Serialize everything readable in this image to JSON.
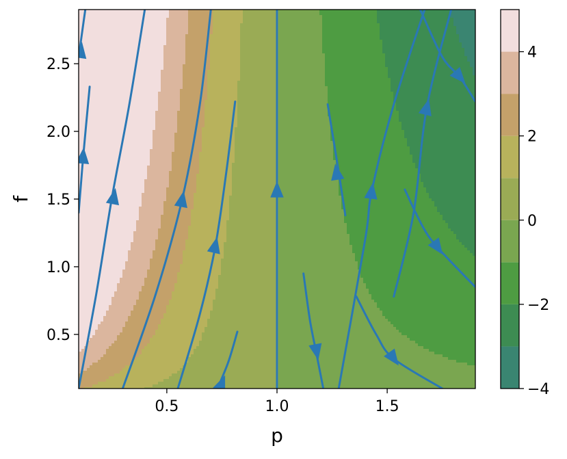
{
  "chart_data": {
    "type": "contour+streamplot",
    "xlabel": "p",
    "ylabel": "f",
    "xlim": [
      0.1,
      1.9
    ],
    "ylim": [
      0.1,
      2.9
    ],
    "xticks": [
      0.5,
      1.0,
      1.5
    ],
    "yticks": [
      0.5,
      1.0,
      1.5,
      2.0,
      2.5
    ],
    "colorbar": {
      "levels": [
        -4,
        -3,
        -2,
        -1,
        0,
        1,
        2,
        3,
        4,
        5
      ],
      "ticks": [
        -4,
        -2,
        0,
        2,
        4
      ],
      "colors": [
        "#3a8571",
        "#3d8c52",
        "#4e9c42",
        "#7aa650",
        "#9aab55",
        "#b8b25c",
        "#c4a16a",
        "#dbb69e",
        "#f2dede"
      ]
    },
    "streamline_color": "#2a78b5",
    "streamlines": [
      {
        "pts": [
          [
            0.1,
            2.55
          ],
          [
            0.13,
            2.9
          ]
        ],
        "arrow": [
          0.11,
          2.6
        ]
      },
      {
        "pts": [
          [
            0.1,
            1.4
          ],
          [
            0.12,
            1.8
          ],
          [
            0.15,
            2.33
          ]
        ],
        "arrow": [
          0.12,
          1.82
        ]
      },
      {
        "pts": [
          [
            0.1,
            0.1
          ],
          [
            0.18,
            0.8
          ],
          [
            0.25,
            1.5
          ],
          [
            0.33,
            2.2
          ],
          [
            0.4,
            2.9
          ]
        ],
        "arrow": [
          0.26,
          1.52
        ]
      },
      {
        "pts": [
          [
            0.3,
            0.1
          ],
          [
            0.45,
            0.8
          ],
          [
            0.57,
            1.5
          ],
          [
            0.65,
            2.2
          ],
          [
            0.7,
            2.9
          ]
        ],
        "arrow": [
          0.57,
          1.5
        ]
      },
      {
        "pts": [
          [
            0.55,
            0.1
          ],
          [
            0.65,
            0.65
          ],
          [
            0.72,
            1.15
          ],
          [
            0.77,
            1.7
          ],
          [
            0.81,
            2.22
          ]
        ],
        "arrow": [
          0.72,
          1.16
        ]
      },
      {
        "pts": [
          [
            0.73,
            0.1
          ],
          [
            0.78,
            0.3
          ],
          [
            0.82,
            0.52
          ]
        ],
        "arrow": [
          0.75,
          0.14
        ]
      },
      {
        "pts": [
          [
            1.0,
            0.1
          ],
          [
            1.0,
            2.9
          ]
        ],
        "arrow": [
          1.0,
          1.57
        ]
      },
      {
        "pts": [
          [
            1.12,
            0.95
          ],
          [
            1.15,
            0.6
          ],
          [
            1.18,
            0.35
          ],
          [
            1.21,
            0.1
          ]
        ],
        "arrow": [
          1.18,
          0.37
        ]
      },
      {
        "pts": [
          [
            1.31,
            1.38
          ],
          [
            1.28,
            1.7
          ],
          [
            1.23,
            2.2
          ]
        ],
        "arrow": [
          1.27,
          1.7
        ]
      },
      {
        "pts": [
          [
            1.36,
            0.78
          ],
          [
            1.45,
            0.5
          ],
          [
            1.53,
            0.32
          ],
          [
            1.75,
            0.1
          ]
        ],
        "arrow": [
          1.53,
          0.32
        ]
      },
      {
        "pts": [
          [
            1.28,
            0.1
          ],
          [
            1.4,
            1.2
          ],
          [
            1.43,
            1.56
          ],
          [
            1.53,
            2.2
          ],
          [
            1.67,
            2.9
          ]
        ],
        "arrow": [
          1.43,
          1.56
        ]
      },
      {
        "pts": [
          [
            1.53,
            0.78
          ],
          [
            1.62,
            1.4
          ],
          [
            1.68,
            2.18
          ],
          [
            1.79,
            2.9
          ]
        ],
        "arrow": [
          1.68,
          2.18
        ]
      },
      {
        "pts": [
          [
            1.58,
            1.57
          ],
          [
            1.66,
            1.3
          ],
          [
            1.73,
            1.14
          ],
          [
            1.9,
            0.85
          ]
        ],
        "arrow": [
          1.73,
          1.14
        ]
      },
      {
        "pts": [
          [
            1.65,
            2.9
          ],
          [
            1.75,
            2.55
          ],
          [
            1.83,
            2.4
          ],
          [
            1.9,
            2.22
          ]
        ],
        "arrow": [
          1.83,
          2.4
        ]
      }
    ]
  }
}
